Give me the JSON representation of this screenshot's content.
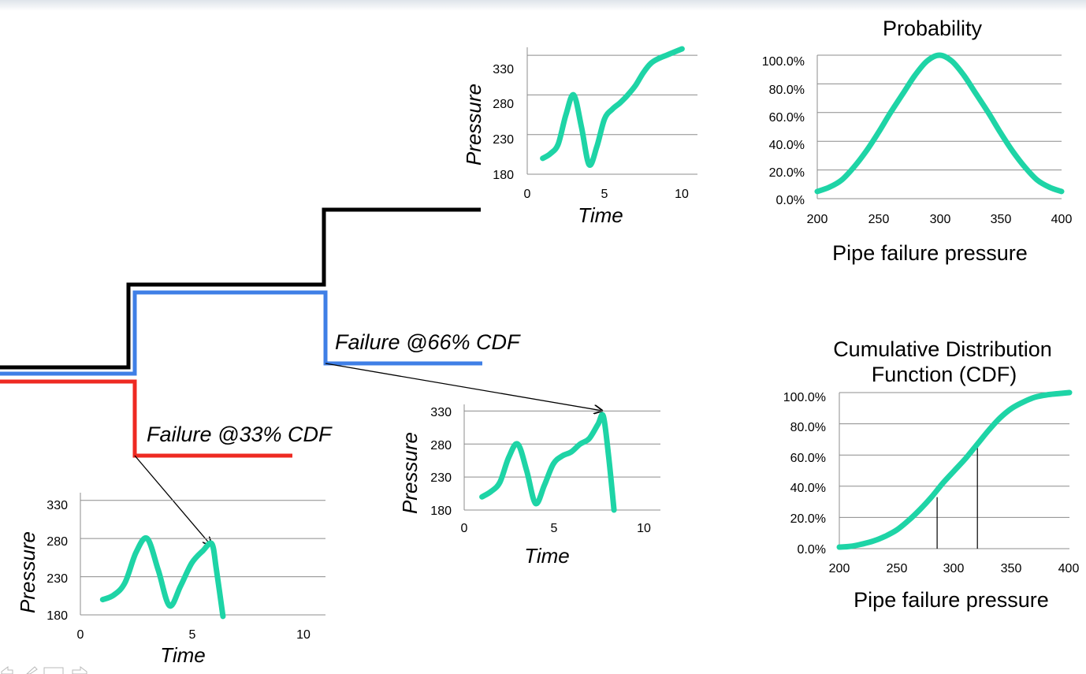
{
  "colors": {
    "curve": "#1ed4a6",
    "black_path": "#000000",
    "blue_path": "#3f7fe6",
    "red_path": "#ee2a22",
    "grid": "#8c8c8c"
  },
  "annotations": {
    "failure_66": "Failure @66% CDF",
    "failure_33": "Failure @33% CDF"
  },
  "chart_data": [
    {
      "id": "pressure-top",
      "type": "line",
      "xlabel": "Time",
      "ylabel": "Pressure",
      "xlim": [
        0,
        11
      ],
      "ylim": [
        180,
        340
      ],
      "x_ticks": [
        "0",
        "5",
        "10"
      ],
      "y_ticks": [
        "180",
        "230",
        "280",
        "330"
      ],
      "grid": true,
      "series": [
        {
          "x": [
            1,
            1.5,
            2,
            2.5,
            3,
            3.5,
            4,
            4.5,
            5,
            5.5,
            6,
            6.5,
            7,
            7.5,
            8,
            8.5,
            9,
            9.5,
            10
          ],
          "y": [
            200,
            206,
            218,
            255,
            280,
            240,
            192,
            215,
            250,
            262,
            270,
            280,
            292,
            308,
            320,
            326,
            330,
            334,
            338
          ]
        }
      ]
    },
    {
      "id": "pressure-mid",
      "type": "line",
      "xlabel": "Time",
      "ylabel": "Pressure",
      "xlim": [
        0,
        11
      ],
      "ylim": [
        180,
        340
      ],
      "x_ticks": [
        "0",
        "5",
        "10"
      ],
      "y_ticks": [
        "180",
        "230",
        "280",
        "330"
      ],
      "grid": true,
      "series": [
        {
          "x": [
            1,
            1.5,
            2,
            2.5,
            3,
            3.5,
            4,
            4.5,
            5,
            5.5,
            6,
            6.5,
            7,
            7.5,
            7.8,
            8.1,
            8.4
          ],
          "y": [
            200,
            208,
            222,
            260,
            280,
            240,
            190,
            218,
            250,
            262,
            268,
            280,
            288,
            310,
            322,
            260,
            180
          ]
        }
      ]
    },
    {
      "id": "pressure-bottom",
      "type": "line",
      "xlabel": "Time",
      "ylabel": "Pressure",
      "xlim": [
        0,
        11
      ],
      "ylim": [
        180,
        340
      ],
      "x_ticks": [
        "0",
        "5",
        "10"
      ],
      "y_ticks": [
        "180",
        "230",
        "280",
        "330"
      ],
      "grid": true,
      "series": [
        {
          "x": [
            1,
            1.5,
            2,
            2.5,
            3,
            3.5,
            4,
            4.5,
            5,
            5.5,
            5.9,
            6.1,
            6.4
          ],
          "y": [
            200,
            206,
            222,
            262,
            280,
            238,
            192,
            218,
            248,
            264,
            273,
            240,
            178
          ]
        }
      ]
    },
    {
      "id": "probability",
      "type": "line",
      "title": "Probability",
      "xlabel": "Pipe failure pressure",
      "xlim": [
        200,
        400
      ],
      "ylim": [
        0,
        100
      ],
      "x_ticks": [
        "200",
        "250",
        "300",
        "350",
        "400"
      ],
      "y_ticks": [
        "0.0%",
        "20.0%",
        "40.0%",
        "60.0%",
        "80.0%",
        "100.0%"
      ],
      "grid": true,
      "series": [
        {
          "x": [
            200,
            210,
            220,
            230,
            240,
            250,
            260,
            270,
            280,
            290,
            300,
            310,
            320,
            330,
            340,
            350,
            360,
            370,
            380,
            390,
            400
          ],
          "y": [
            5,
            8,
            13,
            22,
            33,
            46,
            60,
            73,
            86,
            96,
            100,
            96,
            86,
            73,
            60,
            46,
            33,
            22,
            13,
            8,
            5
          ]
        }
      ]
    },
    {
      "id": "cdf",
      "type": "line",
      "title": "Cumulative Distribution Function (CDF)",
      "title_lines": [
        "Cumulative Distribution",
        "Function (CDF)"
      ],
      "xlabel": "Pipe failure pressure",
      "xlim": [
        200,
        400
      ],
      "ylim": [
        0,
        100
      ],
      "x_ticks": [
        "200",
        "250",
        "300",
        "350",
        "400"
      ],
      "y_ticks": [
        "0.0%",
        "20.0%",
        "40.0%",
        "60.0%",
        "80.0%",
        "100.0%"
      ],
      "grid": true,
      "markers": [
        {
          "x": 285,
          "y": 33
        },
        {
          "x": 320,
          "y": 66
        }
      ],
      "series": [
        {
          "x": [
            200,
            210,
            220,
            230,
            240,
            250,
            260,
            270,
            280,
            290,
            300,
            310,
            320,
            330,
            340,
            350,
            360,
            370,
            380,
            390,
            400
          ],
          "y": [
            1,
            1.5,
            3,
            5,
            8,
            12,
            18,
            25,
            33,
            42,
            50,
            58,
            67,
            76,
            84,
            90,
            94,
            97,
            98.5,
            99.3,
            100
          ]
        }
      ]
    }
  ]
}
